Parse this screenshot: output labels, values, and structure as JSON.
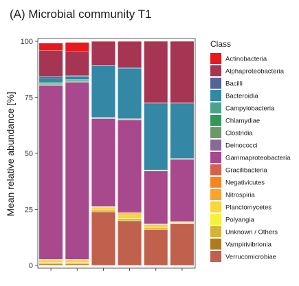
{
  "chart_data": {
    "type": "bar",
    "stacked": true,
    "title": "(A) Microbial community T1",
    "xlabel": "",
    "ylabel": "Mean relative abundance [%]",
    "ylim": [
      0,
      100
    ],
    "y_ticks": [
      0,
      25,
      50,
      75,
      100
    ],
    "y_tick_labels": [
      "0",
      "25",
      "50",
      "75",
      "100"
    ],
    "categories": [
      "",
      "",
      "",
      "",
      "",
      ""
    ],
    "legend_title": "Class",
    "legend_position": "right",
    "grid": false,
    "series": [
      {
        "name": "Verrucomicrobiae",
        "color": "#c0614d",
        "values": [
          0.3,
          0.3,
          23.8,
          19.7,
          16.0,
          18.5
        ]
      },
      {
        "name": "Vampirivibrionia",
        "color": "#b07a1e",
        "values": [
          0.4,
          0.4,
          0.3,
          0.3,
          0.2,
          0.2
        ]
      },
      {
        "name": "Unknown / Others",
        "color": "#d6b23a",
        "values": [
          0.5,
          0.5,
          0.5,
          0.8,
          0.4,
          0.2
        ]
      },
      {
        "name": "Polyangia",
        "color": "#f5f23c",
        "values": [
          0.3,
          0.2,
          0.2,
          0.3,
          0.2,
          0.1
        ]
      },
      {
        "name": "Planctomycetes",
        "color": "#f9d63a",
        "values": [
          0.8,
          0.9,
          1.0,
          1.6,
          1.0,
          0.2
        ]
      },
      {
        "name": "Nitrospiria",
        "color": "#fba32c",
        "values": [
          0.2,
          0.2,
          0.2,
          0.5,
          0.4,
          0.1
        ]
      },
      {
        "name": "Negativicutes",
        "color": "#f5851f",
        "values": [
          0.1,
          0.1,
          0.1,
          0.2,
          0.1,
          0.1
        ]
      },
      {
        "name": "Gracilibacteria",
        "color": "#d6604d",
        "values": [
          0.1,
          0.1,
          0.2,
          0.3,
          0.2,
          0.1
        ]
      },
      {
        "name": "Gammaproteobacteria",
        "color": "#a7498c",
        "values": [
          77.5,
          79.0,
          39.2,
          41.2,
          23.6,
          27.8
        ]
      },
      {
        "name": "Deinococci",
        "color": "#876a95",
        "values": [
          0.3,
          0.2,
          0.1,
          0.1,
          0.1,
          0.1
        ]
      },
      {
        "name": "Clostridia",
        "color": "#6a9a67",
        "values": [
          0.3,
          0.3,
          0.1,
          0.1,
          0.1,
          0.1
        ]
      },
      {
        "name": "Chlamydiae",
        "color": "#2f9a57",
        "values": [
          0.3,
          0.2,
          0.1,
          0.1,
          0.1,
          0.1
        ]
      },
      {
        "name": "Campylobacteria",
        "color": "#4aa38a",
        "values": [
          0.6,
          0.6,
          0.4,
          0.4,
          0.2,
          0.1
        ]
      },
      {
        "name": "Bacteroidia",
        "color": "#3487a5",
        "values": [
          1.8,
          1.3,
          22.8,
          22.4,
          29.8,
          24.7
        ]
      },
      {
        "name": "Bacilli",
        "color": "#55639b",
        "values": [
          0.8,
          0.6,
          0.1,
          0.1,
          0.1,
          0.1
        ]
      },
      {
        "name": "Alphaproteobacteria",
        "color": "#a53552",
        "values": [
          11.5,
          10.7,
          10.8,
          11.8,
          27.5,
          27.5
        ]
      },
      {
        "name": "Actinobacteria",
        "color": "#e8191c",
        "values": [
          3.4,
          3.9,
          0.2,
          0.2,
          0.1,
          0.1
        ]
      }
    ],
    "legend_order": [
      "Actinobacteria",
      "Alphaproteobacteria",
      "Bacilli",
      "Bacteroidia",
      "Campylobacteria",
      "Chlamydiae",
      "Clostridia",
      "Deinococci",
      "Gammaproteobacteria",
      "Gracilibacteria",
      "Negativicutes",
      "Nitrospiria",
      "Planctomycetes",
      "Polyangia",
      "Unknown / Others",
      "Vampirivibrionia",
      "Verrucomicrobiae"
    ]
  }
}
